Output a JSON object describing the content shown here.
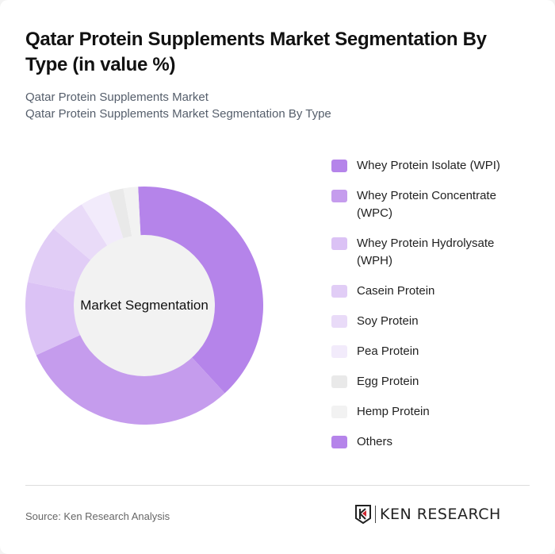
{
  "header": {
    "title": "Qatar Protein Supplements Market Segmentation By Type (in value %)",
    "subtitle_1": "Qatar Protein Supplements Market",
    "subtitle_2": "Qatar Protein Supplements Market Segmentation By Type"
  },
  "chart": {
    "center_label": "Market Segmentation"
  },
  "legend": [
    {
      "label": "Whey Protein Isolate (WPI)",
      "color": "#b584ea"
    },
    {
      "label": "Whey Protein Concentrate (WPC)",
      "color": "#c59ced"
    },
    {
      "label": "Whey Protein Hydrolysate (WPH)",
      "color": "#dbc2f5"
    },
    {
      "label": "Casein Protein",
      "color": "#e1cdf6"
    },
    {
      "label": "Soy Protein",
      "color": "#e9dbf8"
    },
    {
      "label": "Pea Protein",
      "color": "#f2ebfb"
    },
    {
      "label": "Egg Protein",
      "color": "#e9e9e9"
    },
    {
      "label": "Hemp Protein",
      "color": "#f2f2f2"
    },
    {
      "label": "Others",
      "color": "#b584ea"
    }
  ],
  "footer": {
    "source": "Source: Ken Research Analysis",
    "logo_text": "KEN RESEARCH"
  },
  "chart_data": {
    "type": "pie",
    "title": "Qatar Protein Supplements Market Segmentation By Type (in value %)",
    "subtitle": "Qatar Protein Supplements Market Segmentation By Type",
    "donut": true,
    "center_label": "Market Segmentation",
    "categories": [
      "Whey Protein Isolate (WPI)",
      "Whey Protein Concentrate (WPC)",
      "Whey Protein Hydrolysate (WPH)",
      "Casein Protein",
      "Soy Protein",
      "Pea Protein",
      "Egg Protein",
      "Hemp Protein",
      "Others"
    ],
    "values": [
      39,
      30,
      10,
      8,
      5,
      4,
      2,
      2,
      0
    ],
    "colors": [
      "#b584ea",
      "#c59ced",
      "#dbc2f5",
      "#e1cdf6",
      "#e9dbf8",
      "#f2ebfb",
      "#e9e9e9",
      "#f2f2f2",
      "#b584ea"
    ],
    "start_angle_deg": -3,
    "legend_position": "right"
  }
}
